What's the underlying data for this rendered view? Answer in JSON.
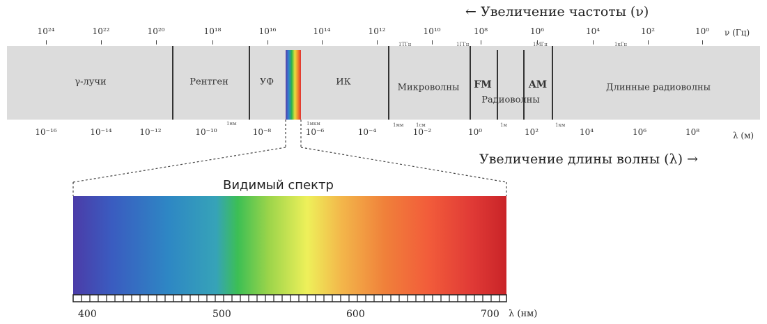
{
  "frequency_axis": {
    "title": "← Увеличение частоты (ν)",
    "unit": "ν (Гц)",
    "ticks": [
      "10²⁴",
      "10²²",
      "10²⁰",
      "10¹⁸",
      "10¹⁶",
      "10¹⁴",
      "10¹²",
      "10¹⁰",
      "10⁸",
      "10⁶",
      "10⁴",
      "10²",
      "10⁰"
    ],
    "markers": [
      "1ТГц",
      "1ГГц",
      "1МГц",
      "1кГц"
    ]
  },
  "wavelength_axis": {
    "title": "Увеличение длины волны (λ) →",
    "unit": "λ (м)",
    "ticks": [
      "10⁻¹⁶",
      "10⁻¹⁴",
      "10⁻¹²",
      "10⁻¹⁰",
      "10⁻⁸",
      "10⁻⁶",
      "10⁻⁴",
      "10⁻²",
      "10⁰",
      "10²",
      "10⁴",
      "10⁶",
      "10⁸"
    ],
    "markers": [
      "1нм",
      "1мкм",
      "1мм",
      "1см",
      "1м",
      "1км"
    ]
  },
  "regions": {
    "gamma": "γ-лучи",
    "xray": "Рентген",
    "uv": "УФ",
    "ir": "ИК",
    "microwave": "Микроволны",
    "fm": "FM",
    "am": "AM",
    "radio": "Радиоволны",
    "long_radio": "Длинные радиоволны"
  },
  "visible": {
    "title": "Видимый спектр",
    "scale": [
      "400",
      "500",
      "600",
      "700"
    ],
    "unit": "λ (нм)"
  },
  "colors": {
    "band": "#dcdcdc",
    "divider": "#333333",
    "violet": "#4b3ca8",
    "blue": "#2e87c4",
    "green": "#3cbf54",
    "yellow": "#eef05a",
    "orange": "#f0803a",
    "red": "#c92428"
  }
}
